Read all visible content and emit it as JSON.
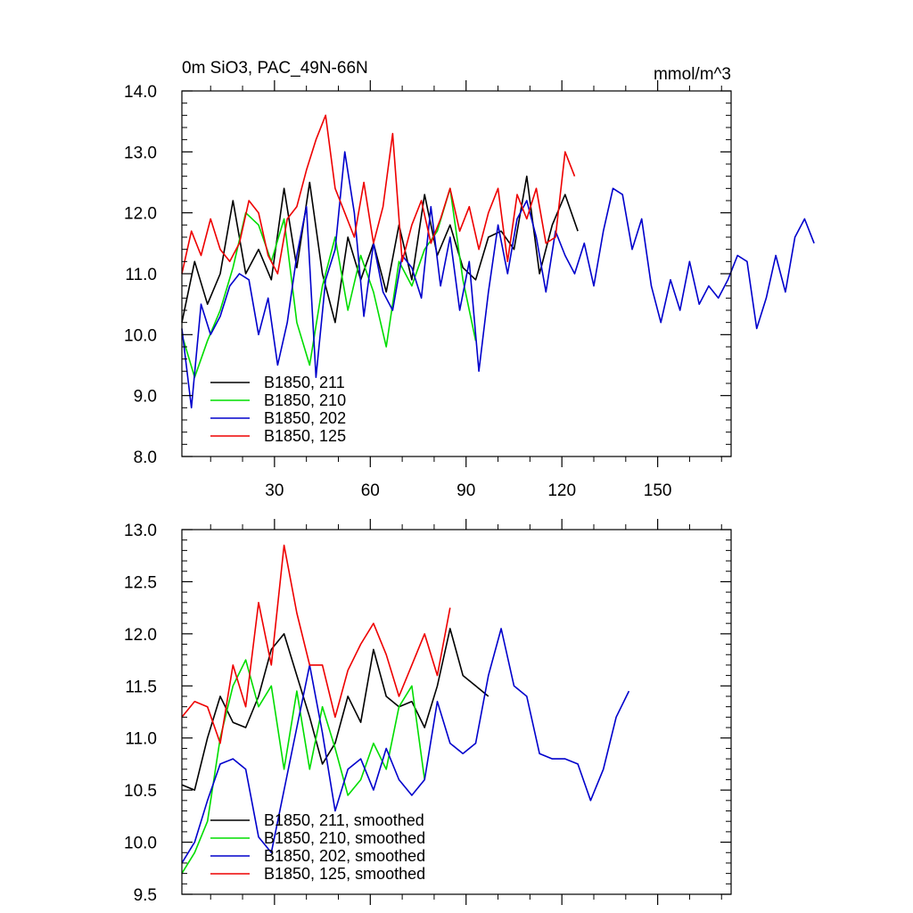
{
  "chart_data": [
    {
      "type": "line",
      "title": "0m SiO3, PAC_49N-66N",
      "units": "mmol/m^3",
      "xlabel": "",
      "ylabel": "",
      "xlim": [
        1,
        173
      ],
      "ylim": [
        8.0,
        14.0
      ],
      "xticks": [
        30,
        60,
        90,
        120,
        150
      ],
      "xtick_labels": [
        "30",
        "60",
        "90",
        "120",
        "150"
      ],
      "yticks": [
        8.0,
        9.0,
        10.0,
        11.0,
        12.0,
        13.0,
        14.0
      ],
      "ytick_labels": [
        "8.0",
        "9.0",
        "10.0",
        "11.0",
        "12.0",
        "13.0",
        "14.0"
      ],
      "legend_position": "lower-left",
      "series": [
        {
          "name": "B1850, 211",
          "color": "#000000",
          "x_start": 1,
          "x_step": 4,
          "values": [
            10.2,
            11.2,
            10.5,
            11.0,
            12.2,
            11.0,
            11.4,
            10.9,
            12.4,
            11.1,
            12.5,
            11.0,
            10.2,
            11.6,
            10.9,
            11.5,
            10.7,
            11.8,
            10.9,
            12.3,
            11.3,
            11.8,
            11.1,
            10.9,
            11.6,
            11.7,
            11.4,
            12.6,
            11.0,
            11.8,
            12.3,
            11.7
          ]
        },
        {
          "name": "B1850, 210",
          "color": "#00dd00",
          "x_start": 1,
          "x_step": 4,
          "values": [
            10.0,
            9.3,
            9.9,
            10.4,
            11.1,
            12.0,
            11.8,
            11.2,
            11.9,
            10.2,
            9.5,
            10.8,
            11.6,
            10.4,
            11.3,
            10.7,
            9.8,
            11.2,
            10.8,
            11.4,
            11.7,
            12.4,
            10.9,
            9.9
          ]
        },
        {
          "name": "B1850, 202",
          "color": "#0000cc",
          "x_start": 1,
          "x_step": 3,
          "values": [
            10.1,
            8.8,
            10.5,
            10.0,
            10.3,
            10.8,
            11.0,
            10.9,
            10.0,
            10.6,
            9.5,
            10.2,
            11.3,
            12.1,
            9.3,
            10.9,
            11.4,
            13.0,
            12.0,
            10.3,
            11.5,
            10.7,
            10.4,
            11.3,
            11.1,
            10.6,
            12.1,
            10.8,
            11.6,
            10.4,
            11.2,
            9.4,
            10.7,
            11.8,
            11.0,
            11.9,
            12.2,
            11.6,
            10.7,
            11.7,
            11.3,
            11.0,
            11.5,
            10.8,
            11.7,
            12.4,
            12.3,
            11.4,
            11.9,
            10.8,
            10.2,
            10.9,
            10.4,
            11.2,
            10.5,
            10.8,
            10.6,
            10.9,
            11.3,
            11.2,
            10.1,
            10.6,
            11.3,
            10.7,
            11.6,
            11.9,
            11.5
          ]
        },
        {
          "name": "B1850, 125",
          "color": "#ee0000",
          "x_start": 1,
          "x_step": 3,
          "values": [
            11.0,
            11.7,
            11.3,
            11.9,
            11.4,
            11.2,
            11.5,
            12.2,
            12.0,
            11.3,
            11.0,
            11.9,
            12.1,
            12.7,
            13.2,
            13.6,
            12.4,
            12.0,
            11.6,
            12.5,
            11.5,
            12.1,
            13.3,
            11.2,
            11.8,
            12.2,
            11.5,
            11.9,
            12.4,
            11.7,
            12.1,
            11.4,
            12.0,
            12.4,
            11.2,
            12.3,
            11.9,
            12.4,
            11.5,
            11.6,
            13.0,
            12.6
          ]
        }
      ]
    },
    {
      "type": "line",
      "title": "",
      "xlabel": "",
      "ylabel": "",
      "xlim": [
        1,
        173
      ],
      "ylim": [
        9.5,
        13.0
      ],
      "xticks": [
        30,
        60,
        90,
        120,
        150
      ],
      "xtick_labels": [],
      "yticks": [
        9.5,
        10.0,
        10.5,
        11.0,
        11.5,
        12.0,
        12.5,
        13.0
      ],
      "ytick_labels": [
        "9.5",
        "10.0",
        "10.5",
        "11.0",
        "11.5",
        "12.0",
        "12.5",
        "13.0"
      ],
      "legend_position": "lower-left",
      "series": [
        {
          "name": "B1850, 211, smoothed",
          "color": "#000000",
          "x_start": 1,
          "x_step": 4,
          "values": [
            10.55,
            10.5,
            11.0,
            11.4,
            11.15,
            11.1,
            11.4,
            11.85,
            12.0,
            11.6,
            11.2,
            10.75,
            10.95,
            11.4,
            11.15,
            11.85,
            11.4,
            11.3,
            11.35,
            11.1,
            11.5,
            12.05,
            11.6,
            11.5,
            11.4
          ]
        },
        {
          "name": "B1850, 210, smoothed",
          "color": "#00dd00",
          "x_start": 1,
          "x_step": 4,
          "values": [
            9.7,
            9.9,
            10.2,
            11.0,
            11.5,
            11.75,
            11.3,
            11.5,
            10.7,
            11.45,
            10.7,
            11.3,
            10.9,
            10.45,
            10.6,
            10.95,
            10.7,
            11.3,
            11.5,
            10.6
          ]
        },
        {
          "name": "B1850, 202, smoothed",
          "color": "#0000cc",
          "x_start": 1,
          "x_step": 4,
          "values": [
            9.8,
            10.0,
            10.4,
            10.75,
            10.8,
            10.7,
            10.05,
            9.9,
            10.5,
            11.1,
            11.7,
            11.05,
            10.3,
            10.7,
            10.8,
            10.5,
            10.9,
            10.6,
            10.45,
            10.6,
            11.35,
            10.95,
            10.85,
            10.95,
            11.6,
            12.05,
            11.5,
            11.4,
            10.85,
            10.8,
            10.8,
            10.75,
            10.4,
            10.7,
            11.2,
            11.45
          ]
        },
        {
          "name": "B1850, 125, smoothed",
          "color": "#ee0000",
          "x_start": 1,
          "x_step": 4,
          "values": [
            11.2,
            11.35,
            11.3,
            10.95,
            11.7,
            11.3,
            12.3,
            11.7,
            12.85,
            12.2,
            11.7,
            11.7,
            11.2,
            11.65,
            11.9,
            12.1,
            11.8,
            11.4,
            11.7,
            12.0,
            11.6,
            12.25
          ]
        }
      ]
    }
  ]
}
